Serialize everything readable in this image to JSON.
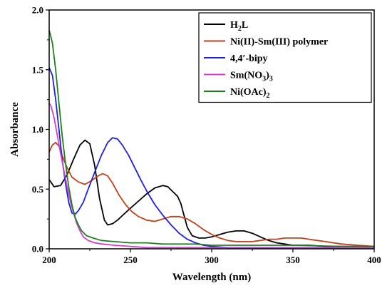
{
  "chart_data": {
    "type": "line",
    "xlabel": "Wavelength (nm)",
    "ylabel": "Absorbance",
    "xlim": [
      200,
      400
    ],
    "ylim": [
      0,
      2.0
    ],
    "x_ticks": [
      "200",
      "250",
      "300",
      "350",
      "400"
    ],
    "y_ticks": [
      "0.0",
      "0.5",
      "1.0",
      "1.5",
      "2.0"
    ],
    "x_tick_values": [
      200,
      250,
      300,
      350,
      400
    ],
    "y_tick_values": [
      0,
      0.5,
      1.0,
      1.5,
      2.0
    ],
    "legend_position": "top-right",
    "grid": false,
    "series": [
      {
        "name_parts": [
          {
            "t": "H"
          },
          {
            "t": "2",
            "sub": true
          },
          {
            "t": "L"
          }
        ],
        "color": "#000000",
        "points": [
          [
            200,
            0.58
          ],
          [
            203,
            0.52
          ],
          [
            207,
            0.53
          ],
          [
            211,
            0.62
          ],
          [
            215,
            0.75
          ],
          [
            219,
            0.87
          ],
          [
            222,
            0.91
          ],
          [
            225,
            0.88
          ],
          [
            228,
            0.7
          ],
          [
            231,
            0.42
          ],
          [
            234,
            0.24
          ],
          [
            236,
            0.2
          ],
          [
            239,
            0.21
          ],
          [
            242,
            0.24
          ],
          [
            246,
            0.29
          ],
          [
            250,
            0.34
          ],
          [
            255,
            0.4
          ],
          [
            260,
            0.46
          ],
          [
            265,
            0.51
          ],
          [
            270,
            0.53
          ],
          [
            273,
            0.52
          ],
          [
            276,
            0.48
          ],
          [
            279,
            0.44
          ],
          [
            281,
            0.38
          ],
          [
            283,
            0.28
          ],
          [
            285,
            0.18
          ],
          [
            288,
            0.11
          ],
          [
            292,
            0.09
          ],
          [
            296,
            0.09
          ],
          [
            300,
            0.1
          ],
          [
            305,
            0.12
          ],
          [
            310,
            0.14
          ],
          [
            315,
            0.15
          ],
          [
            320,
            0.15
          ],
          [
            325,
            0.13
          ],
          [
            330,
            0.1
          ],
          [
            335,
            0.07
          ],
          [
            340,
            0.05
          ],
          [
            345,
            0.04
          ],
          [
            350,
            0.03
          ],
          [
            360,
            0.03
          ],
          [
            370,
            0.02
          ],
          [
            380,
            0.02
          ],
          [
            390,
            0.02
          ],
          [
            400,
            0.02
          ]
        ]
      },
      {
        "name_parts": [
          {
            "t": "Ni(II)-Sm(III) polymer"
          }
        ],
        "color": "#c0401a",
        "points": [
          [
            200,
            0.81
          ],
          [
            202,
            0.87
          ],
          [
            204,
            0.89
          ],
          [
            206,
            0.86
          ],
          [
            208,
            0.78
          ],
          [
            211,
            0.68
          ],
          [
            214,
            0.6
          ],
          [
            218,
            0.56
          ],
          [
            222,
            0.54
          ],
          [
            226,
            0.57
          ],
          [
            230,
            0.61
          ],
          [
            233,
            0.63
          ],
          [
            236,
            0.61
          ],
          [
            239,
            0.55
          ],
          [
            243,
            0.45
          ],
          [
            247,
            0.37
          ],
          [
            251,
            0.31
          ],
          [
            255,
            0.27
          ],
          [
            260,
            0.24
          ],
          [
            265,
            0.23
          ],
          [
            270,
            0.25
          ],
          [
            275,
            0.27
          ],
          [
            280,
            0.27
          ],
          [
            285,
            0.25
          ],
          [
            290,
            0.21
          ],
          [
            295,
            0.16
          ],
          [
            300,
            0.12
          ],
          [
            305,
            0.09
          ],
          [
            310,
            0.07
          ],
          [
            315,
            0.06
          ],
          [
            320,
            0.06
          ],
          [
            325,
            0.06
          ],
          [
            330,
            0.07
          ],
          [
            335,
            0.08
          ],
          [
            340,
            0.08
          ],
          [
            345,
            0.09
          ],
          [
            350,
            0.09
          ],
          [
            355,
            0.09
          ],
          [
            360,
            0.08
          ],
          [
            365,
            0.07
          ],
          [
            370,
            0.06
          ],
          [
            380,
            0.04
          ],
          [
            390,
            0.03
          ],
          [
            400,
            0.02
          ]
        ]
      },
      {
        "name_parts": [
          {
            "t": "4,4′-bipy"
          }
        ],
        "color": "#2020e0",
        "points": [
          [
            200,
            1.52
          ],
          [
            202,
            1.45
          ],
          [
            204,
            1.25
          ],
          [
            206,
            1.0
          ],
          [
            208,
            0.75
          ],
          [
            210,
            0.55
          ],
          [
            212,
            0.39
          ],
          [
            214,
            0.3
          ],
          [
            216,
            0.29
          ],
          [
            218,
            0.32
          ],
          [
            221,
            0.39
          ],
          [
            224,
            0.5
          ],
          [
            228,
            0.64
          ],
          [
            232,
            0.78
          ],
          [
            236,
            0.89
          ],
          [
            239,
            0.93
          ],
          [
            242,
            0.92
          ],
          [
            245,
            0.87
          ],
          [
            249,
            0.78
          ],
          [
            253,
            0.67
          ],
          [
            257,
            0.56
          ],
          [
            261,
            0.46
          ],
          [
            265,
            0.37
          ],
          [
            270,
            0.28
          ],
          [
            275,
            0.2
          ],
          [
            280,
            0.13
          ],
          [
            285,
            0.08
          ],
          [
            290,
            0.05
          ],
          [
            295,
            0.03
          ],
          [
            300,
            0.02
          ],
          [
            310,
            0.01
          ],
          [
            330,
            0.01
          ],
          [
            360,
            0.01
          ],
          [
            400,
            0.01
          ]
        ]
      },
      {
        "name_parts": [
          {
            "t": "Sm(NO"
          },
          {
            "t": "3",
            "sub": true
          },
          {
            "t": ")"
          },
          {
            "t": "3",
            "sub": true
          }
        ],
        "color": "#d040d0",
        "points": [
          [
            200,
            1.22
          ],
          [
            201,
            1.2
          ],
          [
            203,
            1.1
          ],
          [
            205,
            0.95
          ],
          [
            207,
            0.8
          ],
          [
            209,
            0.66
          ],
          [
            211,
            0.52
          ],
          [
            213,
            0.4
          ],
          [
            215,
            0.3
          ],
          [
            217,
            0.21
          ],
          [
            219,
            0.15
          ],
          [
            221,
            0.1
          ],
          [
            224,
            0.07
          ],
          [
            228,
            0.05
          ],
          [
            233,
            0.04
          ],
          [
            240,
            0.03
          ],
          [
            250,
            0.02
          ],
          [
            260,
            0.01
          ],
          [
            280,
            0.01
          ],
          [
            300,
            0.01
          ],
          [
            330,
            0.01
          ],
          [
            360,
            0.01
          ],
          [
            400,
            0.01
          ]
        ]
      },
      {
        "name_parts": [
          {
            "t": "Ni(OAc)"
          },
          {
            "t": "2",
            "sub": true
          }
        ],
        "color": "#208020",
        "points": [
          [
            200,
            1.83
          ],
          [
            201,
            1.78
          ],
          [
            202,
            1.72
          ],
          [
            204,
            1.5
          ],
          [
            206,
            1.22
          ],
          [
            208,
            0.95
          ],
          [
            210,
            0.72
          ],
          [
            212,
            0.52
          ],
          [
            214,
            0.37
          ],
          [
            216,
            0.26
          ],
          [
            218,
            0.2
          ],
          [
            220,
            0.15
          ],
          [
            223,
            0.11
          ],
          [
            227,
            0.09
          ],
          [
            232,
            0.07
          ],
          [
            240,
            0.06
          ],
          [
            250,
            0.05
          ],
          [
            260,
            0.05
          ],
          [
            270,
            0.04
          ],
          [
            280,
            0.04
          ],
          [
            290,
            0.04
          ],
          [
            300,
            0.03
          ],
          [
            320,
            0.03
          ],
          [
            350,
            0.03
          ],
          [
            380,
            0.02
          ],
          [
            400,
            0.02
          ]
        ]
      }
    ]
  }
}
